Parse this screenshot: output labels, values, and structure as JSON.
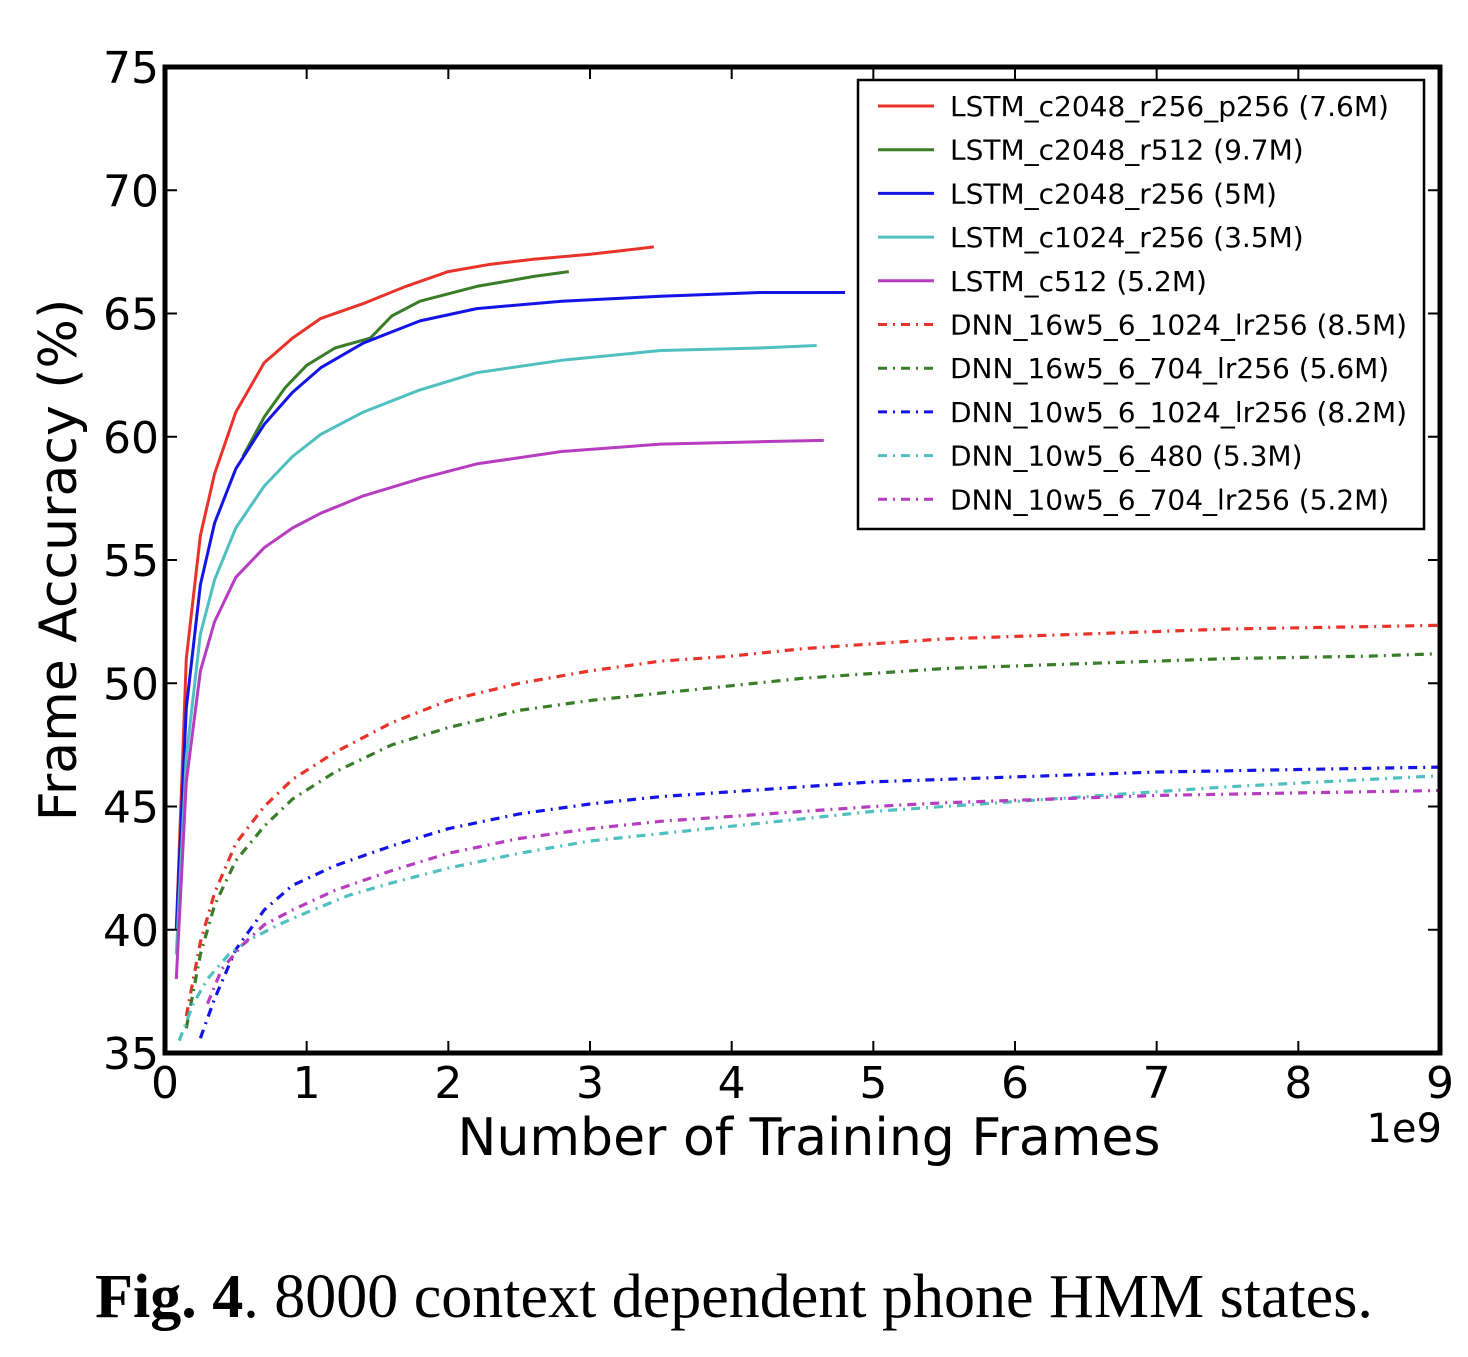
{
  "caption": {
    "label": "Fig. 4",
    "text": ". 8000 context dependent phone HMM states."
  },
  "chart_data": {
    "type": "line",
    "title": "",
    "xlabel": "Number of Training Frames",
    "ylabel": "Frame Accuracy (%)",
    "x_scale_label": "1e9",
    "xlim": [
      0,
      9
    ],
    "ylim": [
      35,
      75
    ],
    "x_ticks": [
      "0",
      "1",
      "2",
      "3",
      "4",
      "5",
      "6",
      "7",
      "8",
      "9"
    ],
    "y_ticks": [
      "35",
      "40",
      "45",
      "50",
      "55",
      "60",
      "65",
      "70",
      "75"
    ],
    "grid": false,
    "legend_position": "top-right",
    "series": [
      {
        "name": "LSTM_c2048_r256_p256 (7.6M)",
        "color": "#e8332a",
        "style": "solid",
        "x": [
          0.08,
          0.15,
          0.25,
          0.35,
          0.5,
          0.7,
          0.9,
          1.1,
          1.4,
          1.7,
          2.0,
          2.3,
          2.6,
          3.0,
          3.45
        ],
        "y": [
          40,
          51,
          56,
          58.5,
          61,
          63,
          64,
          64.8,
          65.4,
          66.1,
          66.7,
          67.0,
          67.2,
          67.4,
          67.7
        ]
      },
      {
        "name": "LSTM_c2048_r512 (9.7M)",
        "color": "#3a7d29",
        "style": "solid",
        "x": [
          0.55,
          0.7,
          0.85,
          1.0,
          1.2,
          1.45,
          1.6,
          1.8,
          2.0,
          2.2,
          2.4,
          2.6,
          2.85
        ],
        "y": [
          59.2,
          60.8,
          62.0,
          62.9,
          63.6,
          64.0,
          64.9,
          65.5,
          65.8,
          66.1,
          66.3,
          66.5,
          66.7
        ]
      },
      {
        "name": "LSTM_c2048_r256 (5M)",
        "color": "#1414e6",
        "style": "solid",
        "x": [
          0.08,
          0.15,
          0.25,
          0.35,
          0.5,
          0.7,
          0.9,
          1.1,
          1.4,
          1.8,
          2.2,
          2.8,
          3.5,
          4.2,
          4.8
        ],
        "y": [
          40,
          49,
          54,
          56.5,
          58.7,
          60.5,
          61.8,
          62.8,
          63.8,
          64.7,
          65.2,
          65.5,
          65.7,
          65.85,
          65.85
        ]
      },
      {
        "name": "LSTM_c1024_r256 (3.5M)",
        "color": "#4fbfbf",
        "style": "solid",
        "x": [
          0.08,
          0.15,
          0.25,
          0.35,
          0.5,
          0.7,
          0.9,
          1.1,
          1.4,
          1.8,
          2.2,
          2.8,
          3.5,
          4.2,
          4.6
        ],
        "y": [
          39,
          47,
          52,
          54.2,
          56.3,
          58.0,
          59.2,
          60.1,
          61.0,
          61.9,
          62.6,
          63.1,
          63.5,
          63.6,
          63.7
        ]
      },
      {
        "name": "LSTM_c512 (5.2M)",
        "color": "#b63dbf",
        "style": "solid",
        "x": [
          0.08,
          0.15,
          0.25,
          0.35,
          0.5,
          0.7,
          0.9,
          1.1,
          1.4,
          1.8,
          2.2,
          2.8,
          3.5,
          4.2,
          4.65
        ],
        "y": [
          38,
          46,
          50.5,
          52.5,
          54.3,
          55.5,
          56.3,
          56.9,
          57.6,
          58.3,
          58.9,
          59.4,
          59.7,
          59.8,
          59.85
        ]
      },
      {
        "name": "DNN_16w5_6_1024_lr256 (8.5M)",
        "color": "#e8332a",
        "style": "dashdot",
        "x": [
          0.15,
          0.25,
          0.35,
          0.5,
          0.7,
          0.9,
          1.2,
          1.6,
          2.0,
          2.5,
          3.0,
          3.5,
          4.0,
          4.5,
          5.0,
          5.5,
          6.0,
          6.5,
          7.0,
          7.5,
          8.0,
          8.5,
          9.0
        ],
        "y": [
          36.5,
          39.5,
          41.5,
          43.5,
          45.0,
          46.1,
          47.2,
          48.4,
          49.3,
          50.0,
          50.5,
          50.9,
          51.1,
          51.4,
          51.6,
          51.8,
          51.9,
          52.0,
          52.1,
          52.2,
          52.25,
          52.3,
          52.35
        ]
      },
      {
        "name": "DNN_16w5_6_704_lr256 (5.6M)",
        "color": "#3a7d29",
        "style": "dashdot",
        "x": [
          0.15,
          0.25,
          0.35,
          0.5,
          0.7,
          0.9,
          1.2,
          1.6,
          2.0,
          2.5,
          3.0,
          3.5,
          4.0,
          4.5,
          5.0,
          5.5,
          6.0,
          6.5,
          7.0,
          7.5,
          8.0,
          8.5,
          9.0
        ],
        "y": [
          36.0,
          39.0,
          41.0,
          42.8,
          44.2,
          45.3,
          46.4,
          47.5,
          48.2,
          48.9,
          49.3,
          49.6,
          49.9,
          50.2,
          50.4,
          50.6,
          50.7,
          50.8,
          50.9,
          51.0,
          51.05,
          51.1,
          51.2
        ]
      },
      {
        "name": "DNN_10w5_6_1024_lr256 (8.2M)",
        "color": "#1414e6",
        "style": "dashdot",
        "x": [
          0.25,
          0.35,
          0.5,
          0.7,
          0.9,
          1.2,
          1.6,
          2.0,
          2.5,
          3.0,
          3.5,
          4.0,
          4.5,
          5.0,
          5.5,
          6.0,
          6.5,
          7.0,
          7.5,
          8.0,
          8.5,
          9.0
        ],
        "y": [
          35.6,
          37.2,
          39.2,
          40.8,
          41.8,
          42.6,
          43.4,
          44.1,
          44.7,
          45.1,
          45.4,
          45.6,
          45.8,
          46.0,
          46.1,
          46.2,
          46.3,
          46.4,
          46.45,
          46.5,
          46.55,
          46.6
        ]
      },
      {
        "name": "DNN_10w5_6_480 (5.3M)",
        "color": "#4fbfbf",
        "style": "dashdot",
        "x": [
          0.1,
          0.2,
          0.3,
          0.45,
          0.6,
          0.8,
          1.0,
          1.3,
          1.6,
          2.0,
          2.5,
          3.0,
          3.5,
          4.0,
          4.5,
          5.0,
          5.5,
          6.0,
          6.5,
          7.0,
          7.5,
          8.0,
          8.5,
          9.0
        ],
        "y": [
          35.5,
          37.0,
          38.0,
          39.0,
          39.6,
          40.2,
          40.7,
          41.4,
          41.9,
          42.5,
          43.1,
          43.6,
          43.9,
          44.2,
          44.5,
          44.8,
          45.0,
          45.2,
          45.4,
          45.6,
          45.8,
          45.95,
          46.1,
          46.25
        ]
      },
      {
        "name": "DNN_10w5_6_704_lr256 (5.2M)",
        "color": "#b63dbf",
        "style": "dashdot",
        "x": [
          0.3,
          0.4,
          0.55,
          0.7,
          0.9,
          1.2,
          1.6,
          2.0,
          2.5,
          3.0,
          3.5,
          4.0,
          4.5,
          5.0,
          5.5,
          6.0,
          6.5,
          7.0,
          7.5,
          8.0,
          8.5,
          9.0
        ],
        "y": [
          37.0,
          38.4,
          39.4,
          40.2,
          40.8,
          41.6,
          42.4,
          43.1,
          43.7,
          44.1,
          44.4,
          44.6,
          44.8,
          45.0,
          45.15,
          45.25,
          45.35,
          45.45,
          45.5,
          45.55,
          45.6,
          45.65
        ]
      }
    ]
  }
}
